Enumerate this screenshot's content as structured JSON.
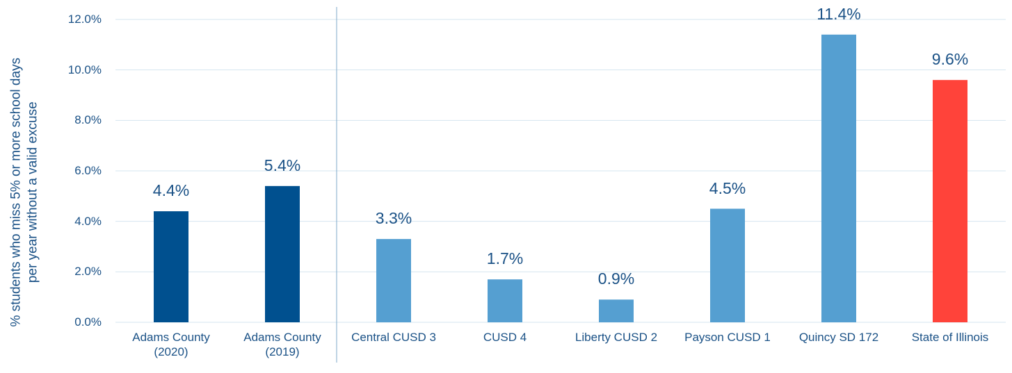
{
  "chart_data": {
    "type": "bar",
    "ylabel": "% students who miss 5% or more school days\nper year without a valid excuse",
    "categories": [
      "Adams County\n(2020)",
      "Adams County\n(2019)",
      "Central CUSD 3",
      "CUSD 4",
      "Liberty CUSD 2",
      "Payson CUSD 1",
      "Quincy SD 172",
      "State of Illinois"
    ],
    "values": [
      4.4,
      5.4,
      3.3,
      1.7,
      0.9,
      4.5,
      11.4,
      9.6
    ],
    "value_labels": [
      "4.4%",
      "5.4%",
      "3.3%",
      "1.7%",
      "0.9%",
      "4.5%",
      "11.4%",
      "9.6%"
    ],
    "colors": [
      "#00508f",
      "#00508f",
      "#559fd1",
      "#559fd1",
      "#559fd1",
      "#559fd1",
      "#559fd1",
      "#ff433a"
    ],
    "ylim": [
      0,
      12
    ],
    "yticks": [
      {
        "value": 0,
        "label": "0.0%"
      },
      {
        "value": 2,
        "label": "2.0%"
      },
      {
        "value": 4,
        "label": "4.0%"
      },
      {
        "value": 6,
        "label": "6.0%"
      },
      {
        "value": 8,
        "label": "8.0%"
      },
      {
        "value": 10,
        "label": "10.0%"
      },
      {
        "value": 12,
        "label": "12.0%"
      }
    ],
    "grid": true
  }
}
